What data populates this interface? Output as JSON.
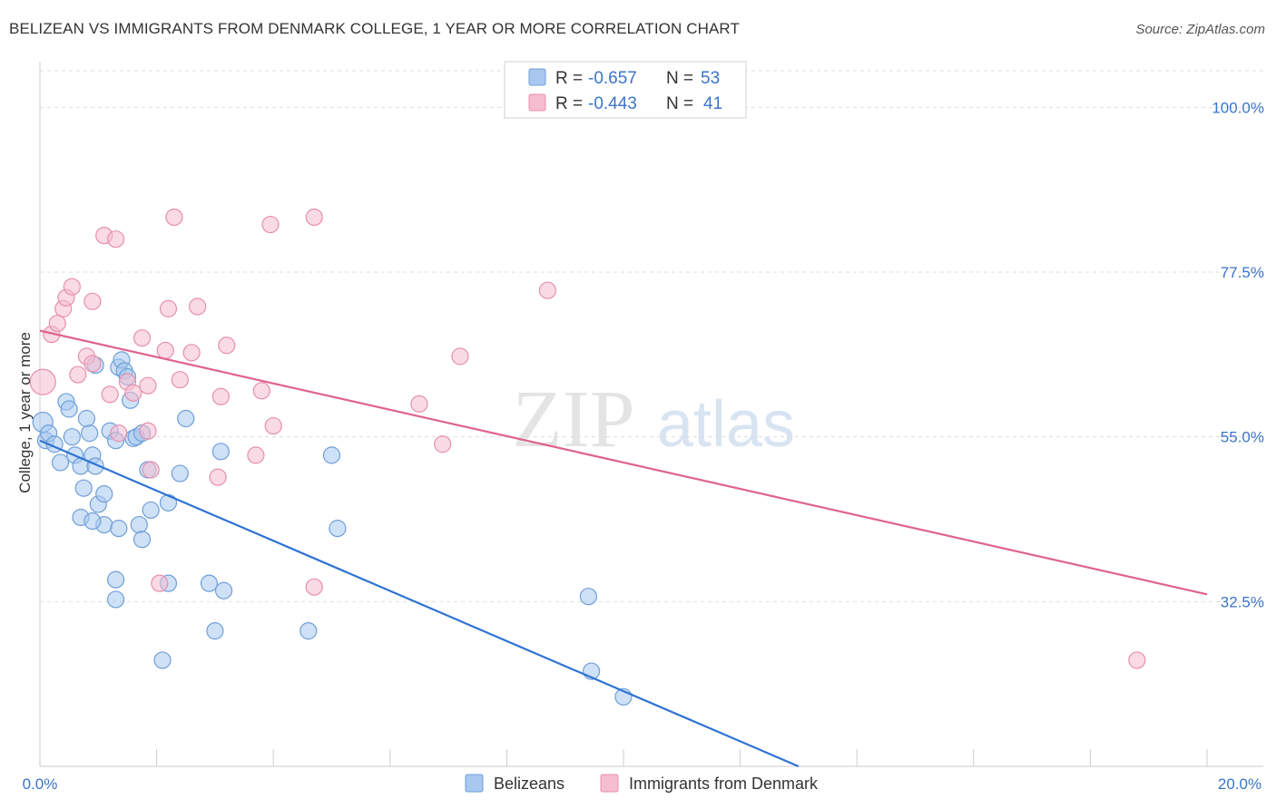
{
  "title": "BELIZEAN VS IMMIGRANTS FROM DENMARK COLLEGE, 1 YEAR OR MORE CORRELATION CHART",
  "source": "Source: ZipAtlas.com",
  "watermark": {
    "zip": "ZIP",
    "atlas": "atlas"
  },
  "legend_top": [
    {
      "r_label": "R =",
      "r_value": "-0.657",
      "n_label": "N =",
      "n_value": "53",
      "color": "#a8c8ef",
      "stroke": "#6f9fd8"
    },
    {
      "r_label": "R =",
      "r_value": "-0.443",
      "n_label": "N =",
      "n_value": "41",
      "color": "#f6bcd0",
      "stroke": "#e690ad"
    }
  ],
  "legend_bottom": [
    {
      "label": "Belizeans",
      "color": "#a8c8ef",
      "stroke": "#6f9fd8"
    },
    {
      "label": "Immigrants from Denmark",
      "color": "#f6bcd0",
      "stroke": "#e690ad"
    }
  ],
  "chart_data": {
    "type": "scatter",
    "title": "BELIZEAN VS IMMIGRANTS FROM DENMARK COLLEGE, 1 YEAR OR MORE CORRELATION CHART",
    "xlabel": "",
    "ylabel": "College, 1 year or more",
    "xlim": [
      0,
      20
    ],
    "ylim": [
      10,
      105
    ],
    "x_tick_labels": [
      "0.0%",
      "20.0%"
    ],
    "y_ticks": [
      32.5,
      55.0,
      77.5,
      100.0
    ],
    "y_tick_labels": [
      "32.5%",
      "55.0%",
      "77.5%",
      "100.0%"
    ],
    "grid": true,
    "series": [
      {
        "name": "Belizeans",
        "color": "#6f9fd8",
        "fill": "#a8c8ef",
        "trend_color": "#2f73d2",
        "trend": {
          "x": [
            0.0,
            13.0
          ],
          "y": [
            54.5,
            10.0
          ]
        },
        "points": [
          [
            0.05,
            57.0
          ],
          [
            0.1,
            54.5
          ],
          [
            0.15,
            55.5
          ],
          [
            0.25,
            54.0
          ],
          [
            0.35,
            51.5
          ],
          [
            0.45,
            59.8
          ],
          [
            0.5,
            58.8
          ],
          [
            0.55,
            55.0
          ],
          [
            0.6,
            52.5
          ],
          [
            0.7,
            51.0
          ],
          [
            0.85,
            55.5
          ],
          [
            0.9,
            52.5
          ],
          [
            0.95,
            51.0
          ],
          [
            0.75,
            48.0
          ],
          [
            0.7,
            44.0
          ],
          [
            0.8,
            57.5
          ],
          [
            1.0,
            45.8
          ],
          [
            1.1,
            43.0
          ],
          [
            0.9,
            43.5
          ],
          [
            1.1,
            47.2
          ],
          [
            1.2,
            55.8
          ],
          [
            1.3,
            54.5
          ],
          [
            1.35,
            42.5
          ],
          [
            0.95,
            64.8
          ],
          [
            1.35,
            64.5
          ],
          [
            1.4,
            65.5
          ],
          [
            1.45,
            64.0
          ],
          [
            1.5,
            63.2
          ],
          [
            1.55,
            60.0
          ],
          [
            1.6,
            54.8
          ],
          [
            1.65,
            55.0
          ],
          [
            1.75,
            55.5
          ],
          [
            1.85,
            50.5
          ],
          [
            1.9,
            45.0
          ],
          [
            1.7,
            43.0
          ],
          [
            1.75,
            41.0
          ],
          [
            2.2,
            46.0
          ],
          [
            2.4,
            50.0
          ],
          [
            2.5,
            57.5
          ],
          [
            3.1,
            53.0
          ],
          [
            1.3,
            35.5
          ],
          [
            1.3,
            32.8
          ],
          [
            2.2,
            35.0
          ],
          [
            2.9,
            35.0
          ],
          [
            3.15,
            34.0
          ],
          [
            3.0,
            28.5
          ],
          [
            4.6,
            28.5
          ],
          [
            5.0,
            52.5
          ],
          [
            5.1,
            42.5
          ],
          [
            2.1,
            24.5
          ],
          [
            9.4,
            33.2
          ],
          [
            9.45,
            23.0
          ],
          [
            10.0,
            19.5
          ]
        ]
      },
      {
        "name": "Immigrants from Denmark",
        "color": "#e690ad",
        "fill": "#f6bcd0",
        "trend_color": "#e0628e",
        "trend": {
          "x": [
            0.0,
            20.0
          ],
          "y": [
            69.5,
            33.5
          ]
        },
        "points": [
          [
            0.05,
            62.5
          ],
          [
            0.2,
            69.0
          ],
          [
            0.3,
            70.5
          ],
          [
            0.4,
            72.5
          ],
          [
            0.45,
            74.0
          ],
          [
            0.55,
            75.5
          ],
          [
            0.65,
            63.5
          ],
          [
            0.8,
            66.0
          ],
          [
            0.9,
            65.0
          ],
          [
            0.9,
            73.5
          ],
          [
            1.1,
            82.5
          ],
          [
            1.3,
            82.0
          ],
          [
            1.2,
            60.8
          ],
          [
            1.35,
            55.5
          ],
          [
            1.5,
            62.5
          ],
          [
            1.6,
            61.0
          ],
          [
            1.75,
            68.5
          ],
          [
            1.85,
            55.8
          ],
          [
            1.85,
            62.0
          ],
          [
            1.9,
            50.5
          ],
          [
            2.15,
            66.8
          ],
          [
            2.2,
            72.5
          ],
          [
            2.3,
            85.0
          ],
          [
            2.4,
            62.8
          ],
          [
            2.6,
            66.5
          ],
          [
            2.7,
            72.8
          ],
          [
            3.05,
            49.5
          ],
          [
            3.1,
            60.5
          ],
          [
            3.2,
            67.5
          ],
          [
            3.7,
            52.5
          ],
          [
            3.8,
            61.3
          ],
          [
            3.95,
            84.0
          ],
          [
            4.0,
            56.5
          ],
          [
            4.7,
            85.0
          ],
          [
            4.7,
            34.5
          ],
          [
            6.5,
            59.5
          ],
          [
            6.9,
            54.0
          ],
          [
            7.2,
            66.0
          ],
          [
            8.7,
            75.0
          ],
          [
            2.05,
            35.0
          ],
          [
            18.8,
            24.5
          ]
        ]
      }
    ]
  }
}
